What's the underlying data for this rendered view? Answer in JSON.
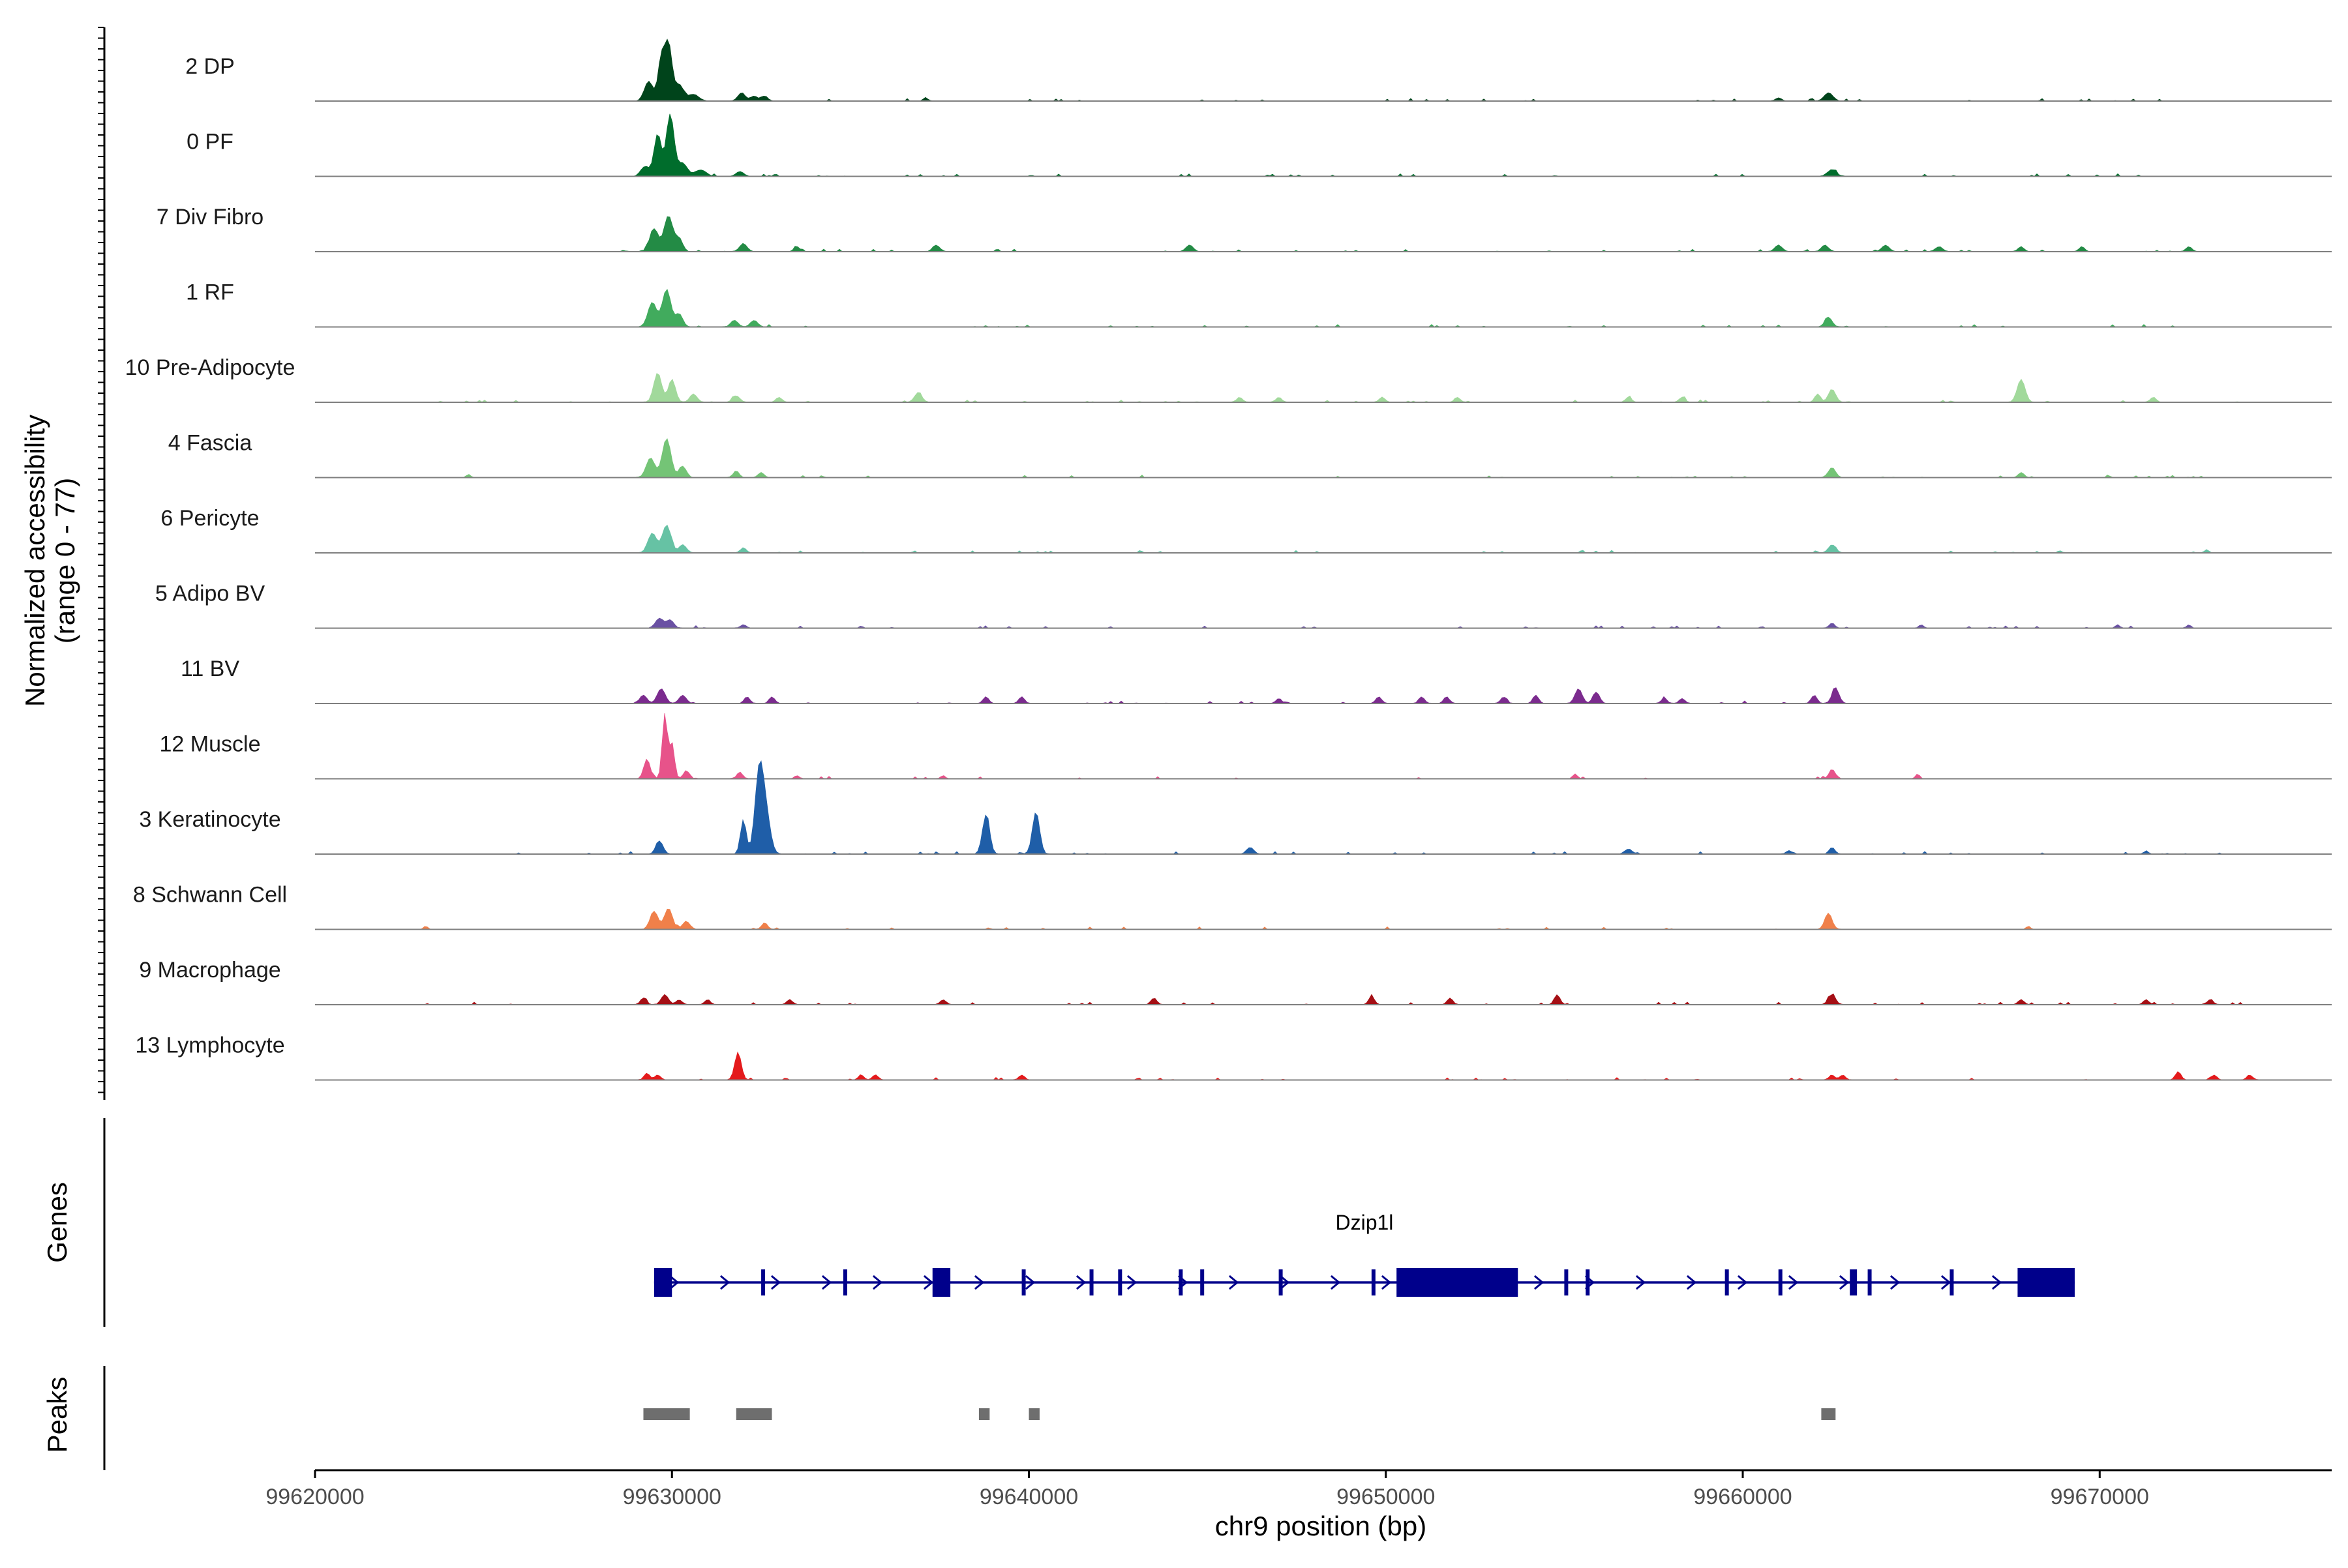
{
  "chart_data": {
    "type": "area",
    "title": "",
    "ylabel": "Normalized accessibility\n(range 0 - 77)",
    "ylabel_lines": [
      "Normalized accessibility",
      "(range 0 - 77)"
    ],
    "xlabel": "chr9 position (bp)",
    "chromosome": "chr9",
    "xlim": [
      99620000,
      99676500
    ],
    "ylim": [
      0,
      77
    ],
    "x_ticks": [
      99620000,
      99630000,
      99640000,
      99650000,
      99660000,
      99670000
    ],
    "x_tick_labels": [
      "99620000",
      "99630000",
      "99640000",
      "99650000",
      "99660000",
      "99670000"
    ],
    "tracks": [
      {
        "name": "2 DP",
        "color": "#00441b",
        "peaks": [
          [
            99629350,
            12,
            120
          ],
          [
            99629700,
            25,
            90
          ],
          [
            99629900,
            35,
            100
          ],
          [
            99630200,
            10,
            120
          ],
          [
            99630600,
            4,
            150
          ],
          [
            99631950,
            5,
            100
          ],
          [
            99632300,
            3,
            100
          ],
          [
            99632600,
            3,
            80
          ],
          [
            99637100,
            2,
            60
          ],
          [
            99662400,
            5,
            120
          ],
          [
            99661000,
            2,
            80
          ]
        ],
        "noise": [
          99629000,
          99673000
        ]
      },
      {
        "name": "0 PF",
        "color": "#006d2c",
        "peaks": [
          [
            99629250,
            6,
            120
          ],
          [
            99629600,
            26,
            100
          ],
          [
            99629950,
            38,
            110
          ],
          [
            99630300,
            8,
            130
          ],
          [
            99630800,
            4,
            150
          ],
          [
            99631900,
            3,
            100
          ],
          [
            99662500,
            4,
            120
          ]
        ],
        "noise": [
          99629000,
          99673000
        ]
      },
      {
        "name": "7 Div Fibro",
        "color": "#238b45",
        "peaks": [
          [
            99629500,
            14,
            120
          ],
          [
            99629900,
            22,
            120
          ],
          [
            99630200,
            8,
            100
          ],
          [
            99632000,
            5,
            100
          ],
          [
            99633500,
            3,
            80
          ],
          [
            99637400,
            4,
            100
          ],
          [
            99644500,
            4,
            100
          ],
          [
            99661000,
            4,
            100
          ],
          [
            99662300,
            4,
            100
          ],
          [
            99664000,
            4,
            100
          ],
          [
            99665500,
            3,
            100
          ],
          [
            99667800,
            3,
            80
          ],
          [
            99669500,
            3,
            80
          ],
          [
            99672500,
            3,
            80
          ]
        ],
        "noise": [
          99628000,
          99673000
        ]
      },
      {
        "name": "1 RF",
        "color": "#41ab5d",
        "peaks": [
          [
            99629450,
            15,
            120
          ],
          [
            99629850,
            23,
            120
          ],
          [
            99630200,
            8,
            100
          ],
          [
            99631750,
            4,
            100
          ],
          [
            99632300,
            4,
            100
          ],
          [
            99662400,
            6,
            100
          ]
        ],
        "noise": [
          99629000,
          99673000
        ]
      },
      {
        "name": "10 Pre-Adipocyte",
        "color": "#a1d99b",
        "peaks": [
          [
            99629600,
            18,
            110
          ],
          [
            99630000,
            14,
            100
          ],
          [
            99630600,
            5,
            100
          ],
          [
            99631800,
            4,
            100
          ],
          [
            99633000,
            3,
            80
          ],
          [
            99636900,
            6,
            100
          ],
          [
            99645900,
            3,
            80
          ],
          [
            99647000,
            3,
            80
          ],
          [
            99649900,
            3,
            80
          ],
          [
            99652000,
            3,
            80
          ],
          [
            99656800,
            3,
            80
          ],
          [
            99658300,
            3,
            80
          ],
          [
            99662500,
            8,
            100
          ],
          [
            99662100,
            5,
            80
          ],
          [
            99667800,
            14,
            110
          ],
          [
            99671500,
            3,
            80
          ]
        ],
        "noise": [
          99622500,
          99675600
        ]
      },
      {
        "name": "4 Fascia",
        "color": "#74c476",
        "peaks": [
          [
            99629400,
            12,
            120
          ],
          [
            99629850,
            24,
            120
          ],
          [
            99630300,
            7,
            100
          ],
          [
            99631800,
            4,
            80
          ],
          [
            99632500,
            3,
            80
          ],
          [
            99624300,
            2,
            60
          ],
          [
            99662500,
            6,
            100
          ],
          [
            99667800,
            3,
            80
          ]
        ],
        "noise": [
          99628500,
          99673000
        ]
      },
      {
        "name": "6 Pericyte",
        "color": "#66c2a4",
        "peaks": [
          [
            99629450,
            12,
            120
          ],
          [
            99629850,
            17,
            120
          ],
          [
            99630300,
            5,
            100
          ],
          [
            99632000,
            3,
            80
          ],
          [
            99662500,
            5,
            100
          ],
          [
            99673000,
            2,
            60
          ]
        ],
        "noise": [
          99629000,
          99673000
        ]
      },
      {
        "name": "5 Adipo BV",
        "color": "#6a51a3",
        "peaks": [
          [
            99629650,
            6,
            110
          ],
          [
            99629950,
            5,
            100
          ],
          [
            99632000,
            2,
            80
          ],
          [
            99662500,
            3,
            80
          ],
          [
            99665000,
            2,
            60
          ],
          [
            99670500,
            2,
            60
          ],
          [
            99672500,
            2,
            60
          ]
        ],
        "noise": [
          99629000,
          99673000
        ]
      },
      {
        "name": "11 BV",
        "color": "#7b2b8e",
        "peaks": [
          [
            99629200,
            5,
            100
          ],
          [
            99629700,
            9,
            110
          ],
          [
            99630300,
            5,
            100
          ],
          [
            99632100,
            4,
            80
          ],
          [
            99632800,
            4,
            80
          ],
          [
            99638800,
            4,
            80
          ],
          [
            99639800,
            4,
            80
          ],
          [
            99647000,
            3,
            80
          ],
          [
            99649800,
            4,
            80
          ],
          [
            99651000,
            4,
            80
          ],
          [
            99651700,
            4,
            80
          ],
          [
            99653300,
            4,
            80
          ],
          [
            99654200,
            5,
            80
          ],
          [
            99655400,
            9,
            100
          ],
          [
            99655900,
            7,
            90
          ],
          [
            99657800,
            3,
            80
          ],
          [
            99658300,
            3,
            80
          ],
          [
            99662000,
            5,
            80
          ],
          [
            99662600,
            9,
            100
          ]
        ],
        "noise": [
          99628800,
          99663200
        ]
      },
      {
        "name": "12 Muscle",
        "color": "#e7538a",
        "peaks": [
          [
            99629300,
            12,
            90
          ],
          [
            99629800,
            40,
            70
          ],
          [
            99630000,
            22,
            70
          ],
          [
            99630400,
            5,
            80
          ],
          [
            99631900,
            4,
            80
          ],
          [
            99633500,
            2,
            60
          ],
          [
            99637600,
            2,
            60
          ],
          [
            99655300,
            3,
            60
          ],
          [
            99662500,
            6,
            80
          ],
          [
            99664900,
            3,
            60
          ]
        ],
        "noise": [
          99628800,
          99663000
        ]
      },
      {
        "name": "3 Keratinocyte",
        "color": "#1f5ea8",
        "peaks": [
          [
            99629650,
            8,
            100
          ],
          [
            99632000,
            21,
            80
          ],
          [
            99632450,
            52,
            120
          ],
          [
            99632650,
            20,
            120
          ],
          [
            99638800,
            24,
            100
          ],
          [
            99640200,
            26,
            100
          ],
          [
            99646200,
            4,
            100
          ],
          [
            99656800,
            3,
            100
          ],
          [
            99661300,
            2,
            80
          ],
          [
            99662500,
            4,
            80
          ],
          [
            99671300,
            2,
            60
          ]
        ],
        "noise": [
          99621500,
          99675600
        ]
      },
      {
        "name": "8 Schwann Cell",
        "color": "#f0804a",
        "peaks": [
          [
            99629500,
            11,
            110
          ],
          [
            99629900,
            13,
            110
          ],
          [
            99630400,
            5,
            100
          ],
          [
            99632600,
            4,
            80
          ],
          [
            99623100,
            2,
            60
          ],
          [
            99662400,
            10,
            100
          ],
          [
            99668000,
            2,
            60
          ]
        ],
        "noise": [
          99629000,
          99663000
        ]
      },
      {
        "name": "9 Macrophage",
        "color": "#a50f15",
        "peaks": [
          [
            99629200,
            4,
            80
          ],
          [
            99629800,
            6,
            100
          ],
          [
            99630200,
            3,
            80
          ],
          [
            99631000,
            3,
            80
          ],
          [
            99633300,
            3,
            80
          ],
          [
            99637600,
            3,
            80
          ],
          [
            99643500,
            4,
            80
          ],
          [
            99649600,
            5,
            80
          ],
          [
            99651800,
            4,
            80
          ],
          [
            99654800,
            6,
            80
          ],
          [
            99662500,
            6,
            100
          ],
          [
            99667800,
            3,
            80
          ],
          [
            99671300,
            3,
            80
          ],
          [
            99673100,
            3,
            80
          ]
        ],
        "noise": [
          99623000,
          99674000
        ]
      },
      {
        "name": "13 Lymphocyte",
        "color": "#e41a1c",
        "peaks": [
          [
            99629300,
            4,
            80
          ],
          [
            99629600,
            3,
            80
          ],
          [
            99631850,
            17,
            90
          ],
          [
            99635300,
            3,
            80
          ],
          [
            99635700,
            3,
            80
          ],
          [
            99639800,
            3,
            80
          ],
          [
            99662500,
            3,
            80
          ],
          [
            99662800,
            3,
            80
          ],
          [
            99672200,
            5,
            80
          ],
          [
            99673200,
            3,
            80
          ],
          [
            99674200,
            3,
            80
          ]
        ],
        "noise": [
          99629000,
          99674500
        ]
      }
    ],
    "genes": [
      {
        "name": "Dzip1l",
        "strand": "+",
        "color": "#00008b",
        "start": 99629500,
        "end": 99669300,
        "exons": [
          [
            99629500,
            99630000
          ],
          [
            99632500,
            99632600
          ],
          [
            99634800,
            99634850
          ],
          [
            99637300,
            99637800
          ],
          [
            99639800,
            99639900
          ],
          [
            99641700,
            99641800
          ],
          [
            99642500,
            99642600
          ],
          [
            99644200,
            99644300
          ],
          [
            99644800,
            99644850
          ],
          [
            99647000,
            99647100
          ],
          [
            99649600,
            99649700
          ],
          [
            99650300,
            99653700
          ],
          [
            99655000,
            99655050
          ],
          [
            99655600,
            99655700
          ],
          [
            99659500,
            99659600
          ],
          [
            99661000,
            99661100
          ],
          [
            99663000,
            99663200
          ],
          [
            99663500,
            99663600
          ],
          [
            99665800,
            99665900
          ],
          [
            99667700,
            99669300
          ]
        ],
        "big_exons": [
          [
            99629500,
            99630000
          ],
          [
            99637300,
            99637800
          ],
          [
            99650300,
            99653700
          ],
          [
            99667700,
            99669300
          ]
        ]
      }
    ],
    "peaks_track": [
      [
        99629200,
        99630500
      ],
      [
        99631800,
        99632800
      ],
      [
        99638600,
        99638900
      ],
      [
        99640000,
        99640300
      ],
      [
        99662200,
        99662600
      ]
    ],
    "track_panel_label_genes": "Genes",
    "track_panel_label_peaks": "Peaks"
  }
}
